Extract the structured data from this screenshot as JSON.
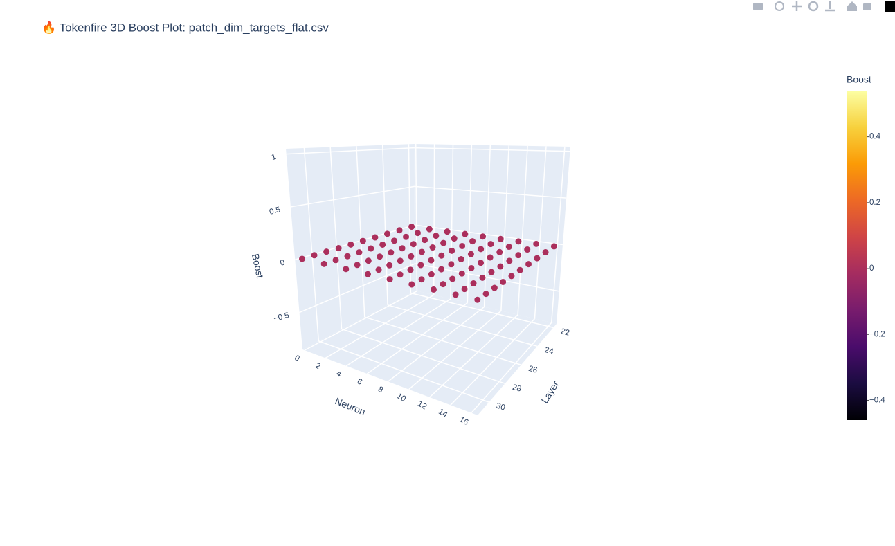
{
  "chart_data": {
    "type": "scatter3d",
    "title": "🔥 Tokenfire 3D Boost Plot: patch_dim_targets_flat.csv",
    "x_label": "Neuron",
    "y_label": "Layer",
    "z_label": "Boost",
    "x": [
      0,
      2,
      4,
      6,
      8,
      10,
      12,
      14,
      16,
      0,
      2,
      4,
      6,
      8,
      10,
      12,
      14,
      16,
      0,
      2,
      4,
      6,
      8,
      10,
      12,
      14,
      16,
      0,
      2,
      4,
      6,
      8,
      10,
      12,
      14,
      16,
      0,
      2,
      4,
      6,
      8,
      10,
      12,
      14,
      16,
      0,
      2,
      4,
      6,
      8,
      10,
      12,
      14,
      16,
      0,
      2,
      4,
      6,
      8,
      10,
      12,
      14,
      16,
      0,
      2,
      4,
      6,
      8,
      10,
      12,
      14,
      16,
      0,
      2,
      4,
      6,
      8,
      10,
      12,
      14,
      16,
      0,
      2,
      4,
      6,
      8,
      10,
      12,
      14,
      16
    ],
    "y": [
      22,
      22,
      22,
      22,
      22,
      22,
      22,
      22,
      22,
      23,
      23,
      23,
      23,
      23,
      23,
      23,
      23,
      23,
      24,
      24,
      24,
      24,
      24,
      24,
      24,
      24,
      24,
      25,
      25,
      25,
      25,
      25,
      25,
      25,
      25,
      25,
      26,
      26,
      26,
      26,
      26,
      26,
      26,
      26,
      26,
      27,
      27,
      27,
      27,
      27,
      27,
      27,
      27,
      27,
      28,
      28,
      28,
      28,
      28,
      28,
      28,
      28,
      28,
      29,
      29,
      29,
      29,
      29,
      29,
      29,
      29,
      29,
      30,
      30,
      30,
      30,
      30,
      30,
      30,
      30,
      30,
      31,
      31,
      31,
      31,
      31,
      31,
      31,
      31,
      31
    ],
    "z": [
      0,
      0,
      0,
      0,
      0,
      0,
      0,
      0,
      0,
      0,
      0,
      0,
      0,
      0,
      0,
      0,
      0,
      0,
      0,
      0,
      0,
      0,
      0,
      0,
      0,
      0,
      0,
      0,
      0,
      0,
      0,
      0,
      0,
      0,
      0,
      0,
      0,
      0,
      0,
      0,
      0,
      0,
      0,
      0,
      0,
      0,
      0,
      0,
      0,
      0,
      0,
      0,
      0,
      0,
      0,
      0,
      0,
      0,
      0,
      0,
      0,
      0,
      0,
      0,
      0,
      0,
      0,
      0,
      0,
      0,
      0,
      0,
      0,
      0,
      0,
      0,
      0,
      0,
      0,
      0,
      0,
      0,
      0,
      0,
      0,
      0,
      0,
      0,
      0,
      0
    ],
    "xlim": [
      -0.2,
      16.6
    ],
    "ylim": [
      21.6,
      31.4
    ],
    "zlim": [
      -0.85,
      1.05
    ],
    "xticks": [
      0,
      2,
      4,
      6,
      8,
      10,
      12,
      14,
      16
    ],
    "yticks": [
      22,
      24,
      26,
      28,
      30
    ],
    "zticks": [
      {
        "value": -0.5,
        "label": "−0.5"
      },
      0,
      0.5,
      1
    ],
    "grid": true,
    "colorbar": {
      "title": "Boost",
      "cmin": -0.46,
      "cmax": 0.54,
      "ticks": [
        {
          "value": -0.4,
          "label": "−0.4"
        },
        {
          "value": -0.2,
          "label": "−0.2"
        },
        0,
        0.2,
        0.4
      ],
      "colorscale": [
        "#000004",
        "#1b0c41",
        "#4a0c6b",
        "#781c6d",
        "#a52c60",
        "#cf4446",
        "#ed6925",
        "#fb9b06",
        "#f7d13d",
        "#fcffa4"
      ]
    }
  }
}
